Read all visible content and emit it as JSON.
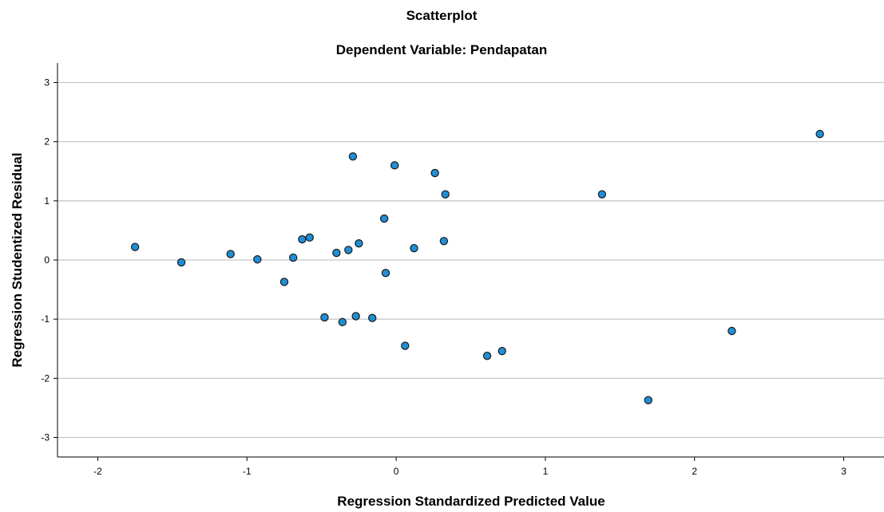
{
  "chart_data": {
    "type": "scatter",
    "title": "Scatterplot",
    "subtitle": "Dependent Variable: Pendapatan",
    "xlabel": "Regression Standardized Predicted Value",
    "ylabel": "Regression Studentized Residual",
    "xlim": [
      -2.27,
      3.27
    ],
    "ylim": [
      -3.33,
      3.33
    ],
    "xticks": [
      -2,
      -1,
      0,
      1,
      2,
      3
    ],
    "yticks": [
      -3,
      -2,
      -1,
      0,
      1,
      2,
      3
    ],
    "grid": "horizontal",
    "marker_fill": "#1f8fd6",
    "marker_edge": "#1a1a1a",
    "gridline_color": "#c8c8c8",
    "points": [
      {
        "x": -1.75,
        "y": 0.22
      },
      {
        "x": -1.44,
        "y": -0.04
      },
      {
        "x": -1.11,
        "y": 0.1
      },
      {
        "x": -0.93,
        "y": 0.01
      },
      {
        "x": -0.75,
        "y": -0.37
      },
      {
        "x": -0.69,
        "y": 0.04
      },
      {
        "x": -0.63,
        "y": 0.35
      },
      {
        "x": -0.58,
        "y": 0.38
      },
      {
        "x": -0.48,
        "y": -0.97
      },
      {
        "x": -0.4,
        "y": 0.12
      },
      {
        "x": -0.36,
        "y": -1.05
      },
      {
        "x": -0.32,
        "y": 0.17
      },
      {
        "x": -0.29,
        "y": 1.75
      },
      {
        "x": -0.27,
        "y": -0.95
      },
      {
        "x": -0.25,
        "y": 0.28
      },
      {
        "x": -0.16,
        "y": -0.98
      },
      {
        "x": -0.08,
        "y": 0.7
      },
      {
        "x": -0.07,
        "y": -0.22
      },
      {
        "x": -0.01,
        "y": 1.6
      },
      {
        "x": 0.06,
        "y": -1.45
      },
      {
        "x": 0.12,
        "y": 0.2
      },
      {
        "x": 0.26,
        "y": 1.47
      },
      {
        "x": 0.32,
        "y": 0.32
      },
      {
        "x": 0.33,
        "y": 1.11
      },
      {
        "x": 0.61,
        "y": -1.62
      },
      {
        "x": 0.71,
        "y": -1.54
      },
      {
        "x": 1.38,
        "y": 1.11
      },
      {
        "x": 1.69,
        "y": -2.37
      },
      {
        "x": 2.25,
        "y": -1.2
      },
      {
        "x": 2.84,
        "y": 2.13
      }
    ]
  }
}
